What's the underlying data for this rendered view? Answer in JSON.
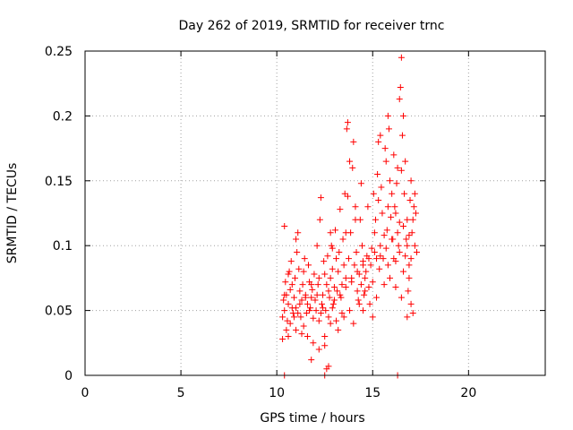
{
  "chart_data": {
    "type": "scatter",
    "title": "Day 262 of 2019, SRMTID for receiver trnc",
    "xlabel": "GPS time / hours",
    "ylabel": "SRMTID / TECUs",
    "xlim": [
      0,
      24
    ],
    "ylim": [
      0,
      0.25
    ],
    "x_ticks": [
      0,
      5,
      10,
      15,
      20
    ],
    "x_tick_labels": [
      "0",
      "5",
      "10",
      "15",
      "20"
    ],
    "y_ticks": [
      0,
      0.05,
      0.1,
      0.15,
      0.2,
      0.25
    ],
    "y_tick_labels": [
      "0",
      "0.05",
      "0.1",
      "0.15",
      "0.2",
      "0.25"
    ],
    "grid": true,
    "marker": "plus",
    "color": "#ff0000",
    "series": [
      {
        "points": [
          [
            10.3,
            0.045
          ],
          [
            10.4,
            0.05
          ],
          [
            10.35,
            0.058
          ],
          [
            10.5,
            0.062
          ],
          [
            10.45,
            0.072
          ],
          [
            10.6,
            0.055
          ],
          [
            10.55,
            0.042
          ],
          [
            10.7,
            0.066
          ],
          [
            10.65,
            0.08
          ],
          [
            10.8,
            0.07
          ],
          [
            10.75,
            0.088
          ],
          [
            10.9,
            0.06
          ],
          [
            10.85,
            0.048
          ],
          [
            11.0,
            0.052
          ],
          [
            10.95,
            0.075
          ],
          [
            11.1,
            0.11
          ],
          [
            11.05,
            0.095
          ],
          [
            11.2,
            0.065
          ],
          [
            11.15,
            0.082
          ],
          [
            11.3,
            0.058
          ],
          [
            11.25,
            0.045
          ],
          [
            11.4,
            0.038
          ],
          [
            11.35,
            0.07
          ],
          [
            11.5,
            0.062
          ],
          [
            11.45,
            0.09
          ],
          [
            11.6,
            0.055
          ],
          [
            11.55,
            0.048
          ],
          [
            11.7,
            0.072
          ],
          [
            11.65,
            0.085
          ],
          [
            11.8,
            0.06
          ],
          [
            11.75,
            0.052
          ],
          [
            11.9,
            0.044
          ],
          [
            11.85,
            0.066
          ],
          [
            12.0,
            0.058
          ],
          [
            11.95,
            0.078
          ],
          [
            12.1,
            0.1
          ],
          [
            12.05,
            0.05
          ],
          [
            12.2,
            0.042
          ],
          [
            12.15,
            0.07
          ],
          [
            12.3,
            0.137
          ],
          [
            12.25,
            0.12
          ],
          [
            12.4,
            0.062
          ],
          [
            12.35,
            0.055
          ],
          [
            12.5,
            0.078
          ],
          [
            12.45,
            0.088
          ],
          [
            12.6,
            0.07
          ],
          [
            12.55,
            0.05
          ],
          [
            12.7,
            0.065
          ],
          [
            12.65,
            0.092
          ],
          [
            12.8,
            0.075
          ],
          [
            12.75,
            0.06
          ],
          [
            12.9,
            0.082
          ],
          [
            12.85,
            0.1
          ],
          [
            13.0,
            0.068
          ],
          [
            12.95,
            0.055
          ],
          [
            13.1,
            0.09
          ],
          [
            13.05,
            0.112
          ],
          [
            13.2,
            0.08
          ],
          [
            13.15,
            0.065
          ],
          [
            13.3,
            0.128
          ],
          [
            13.25,
            0.095
          ],
          [
            13.4,
            0.07
          ],
          [
            13.35,
            0.06
          ],
          [
            13.5,
            0.085
          ],
          [
            13.45,
            0.105
          ],
          [
            13.6,
            0.075
          ],
          [
            13.55,
            0.14
          ],
          [
            13.7,
            0.195
          ],
          [
            13.65,
            0.19
          ],
          [
            13.8,
            0.165
          ],
          [
            13.75,
            0.09
          ],
          [
            13.9,
            0.072
          ],
          [
            13.85,
            0.11
          ],
          [
            14.0,
            0.18
          ],
          [
            13.95,
            0.16
          ],
          [
            14.1,
            0.13
          ],
          [
            14.05,
            0.085
          ],
          [
            14.2,
            0.065
          ],
          [
            14.15,
            0.095
          ],
          [
            14.3,
            0.078
          ],
          [
            14.25,
            0.058
          ],
          [
            14.4,
            0.07
          ],
          [
            14.35,
            0.12
          ],
          [
            14.5,
            0.088
          ],
          [
            14.45,
            0.1
          ],
          [
            14.6,
            0.075
          ],
          [
            14.55,
            0.062
          ],
          [
            14.7,
            0.092
          ],
          [
            14.65,
            0.08
          ],
          [
            14.8,
            0.068
          ],
          [
            14.75,
            0.13
          ],
          [
            14.9,
            0.085
          ],
          [
            14.85,
            0.055
          ],
          [
            15.0,
            0.072
          ],
          [
            14.95,
            0.098
          ],
          [
            15.1,
            0.11
          ],
          [
            15.05,
            0.14
          ],
          [
            15.2,
            0.09
          ],
          [
            15.15,
            0.12
          ],
          [
            15.3,
            0.18
          ],
          [
            15.25,
            0.155
          ],
          [
            15.4,
            0.1
          ],
          [
            15.35,
            0.082
          ],
          [
            15.5,
            0.125
          ],
          [
            15.45,
            0.145
          ],
          [
            15.6,
            0.108
          ],
          [
            15.55,
            0.09
          ],
          [
            15.7,
            0.165
          ],
          [
            15.65,
            0.175
          ],
          [
            15.8,
            0.13
          ],
          [
            15.75,
            0.112
          ],
          [
            15.9,
            0.15
          ],
          [
            15.85,
            0.19
          ],
          [
            16.0,
            0.14
          ],
          [
            15.95,
            0.122
          ],
          [
            16.1,
            0.17
          ],
          [
            16.05,
            0.105
          ],
          [
            16.2,
            0.088
          ],
          [
            16.15,
            0.13
          ],
          [
            16.3,
            0.16
          ],
          [
            16.25,
            0.148
          ],
          [
            16.4,
            0.118
          ],
          [
            16.35,
            0.1
          ],
          [
            16.5,
            0.245
          ],
          [
            16.45,
            0.222
          ],
          [
            16.6,
            0.2
          ],
          [
            16.55,
            0.185
          ],
          [
            16.7,
            0.165
          ],
          [
            16.65,
            0.14
          ],
          [
            16.8,
            0.12
          ],
          [
            16.75,
            0.105
          ],
          [
            16.9,
            0.085
          ],
          [
            16.85,
            0.065
          ],
          [
            17.0,
            0.15
          ],
          [
            16.95,
            0.135
          ],
          [
            17.1,
            0.12
          ],
          [
            17.05,
            0.11
          ],
          [
            17.2,
            0.14
          ],
          [
            17.15,
            0.13
          ],
          [
            17.25,
            0.125
          ],
          [
            10.3,
            0.028
          ],
          [
            10.5,
            0.035
          ],
          [
            10.7,
            0.04
          ],
          [
            11.0,
            0.035
          ],
          [
            11.3,
            0.032
          ],
          [
            11.6,
            0.03
          ],
          [
            11.9,
            0.025
          ],
          [
            12.2,
            0.02
          ],
          [
            12.5,
            0.03
          ],
          [
            12.8,
            0.04
          ],
          [
            11.8,
            0.012
          ],
          [
            12.5,
            0.023
          ],
          [
            12.7,
            0.007
          ],
          [
            12.6,
            0.005
          ],
          [
            13.2,
            0.035
          ],
          [
            13.5,
            0.045
          ],
          [
            14.0,
            0.04
          ],
          [
            14.5,
            0.05
          ],
          [
            15.0,
            0.045
          ],
          [
            16.8,
            0.045
          ],
          [
            17.1,
            0.048
          ],
          [
            17.0,
            0.055
          ],
          [
            16.9,
            0.075
          ],
          [
            16.8,
            0.1
          ],
          [
            10.4,
            0.062
          ],
          [
            10.6,
            0.078
          ],
          [
            10.9,
            0.045
          ],
          [
            11.2,
            0.055
          ],
          [
            11.5,
            0.06
          ],
          [
            11.8,
            0.07
          ],
          [
            12.1,
            0.062
          ],
          [
            12.4,
            0.052
          ],
          [
            12.7,
            0.045
          ],
          [
            13.0,
            0.058
          ],
          [
            13.3,
            0.062
          ],
          [
            13.6,
            0.068
          ],
          [
            13.9,
            0.075
          ],
          [
            14.2,
            0.08
          ],
          [
            14.5,
            0.085
          ],
          [
            14.8,
            0.09
          ],
          [
            15.1,
            0.095
          ],
          [
            15.4,
            0.092
          ],
          [
            15.7,
            0.098
          ],
          [
            16.0,
            0.105
          ],
          [
            16.3,
            0.11
          ],
          [
            16.6,
            0.115
          ],
          [
            16.9,
            0.108
          ],
          [
            17.2,
            0.1
          ],
          [
            15.6,
            0.07
          ],
          [
            15.9,
            0.075
          ],
          [
            16.2,
            0.068
          ],
          [
            16.5,
            0.06
          ],
          [
            15.2,
            0.06
          ],
          [
            14.6,
            0.065
          ],
          [
            14.3,
            0.055
          ],
          [
            13.8,
            0.05
          ],
          [
            13.4,
            0.048
          ],
          [
            12.9,
            0.052
          ],
          [
            12.3,
            0.048
          ],
          [
            11.7,
            0.05
          ],
          [
            11.1,
            0.048
          ],
          [
            10.8,
            0.052
          ],
          [
            15.8,
            0.085
          ],
          [
            16.1,
            0.09
          ],
          [
            16.4,
            0.095
          ],
          [
            16.7,
            0.092
          ],
          [
            17.0,
            0.09
          ],
          [
            17.3,
            0.095
          ],
          [
            16.6,
            0.08
          ],
          [
            13.1,
            0.042
          ],
          [
            12.2,
            0.075
          ],
          [
            11.4,
            0.08
          ],
          [
            10.6,
            0.03
          ],
          [
            10.4,
            0.115
          ],
          [
            11.0,
            0.105
          ],
          [
            12.8,
            0.11
          ],
          [
            13.7,
            0.138
          ],
          [
            14.4,
            0.148
          ],
          [
            15.3,
            0.135
          ],
          [
            16.2,
            0.125
          ],
          [
            16.3,
            0.0
          ],
          [
            10.4,
            0.0
          ],
          [
            12.5,
            0.0
          ],
          [
            16.5,
            0.158
          ],
          [
            16.4,
            0.213
          ],
          [
            15.8,
            0.2
          ],
          [
            15.4,
            0.185
          ],
          [
            14.1,
            0.12
          ],
          [
            13.6,
            0.11
          ],
          [
            12.9,
            0.098
          ]
        ]
      }
    ]
  }
}
